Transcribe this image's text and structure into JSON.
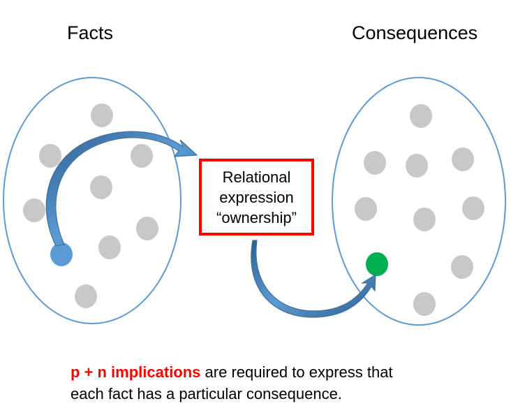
{
  "headings": {
    "facts": "Facts",
    "consequences": "Consequences"
  },
  "relation_box": {
    "line1": "Relational",
    "line2": "expression",
    "line3": "“ownership”"
  },
  "caption": {
    "emphasis": "p + n implications",
    "rest_line1": " are required to express that",
    "line2": "each fact has a particular consequence."
  },
  "colors": {
    "ellipse_stroke": "#5b9bd5",
    "dot_gray": "#c8c8c8",
    "dot_blue": "#5b9bd5",
    "dot_green": "#00b050",
    "arrow": "#41719c",
    "box_border": "#ff0000",
    "emphasis_text": "#ff0000"
  },
  "icons": {
    "arrow_to_box": "curved-arrow",
    "arrow_to_consequence": "curved-arrow"
  }
}
